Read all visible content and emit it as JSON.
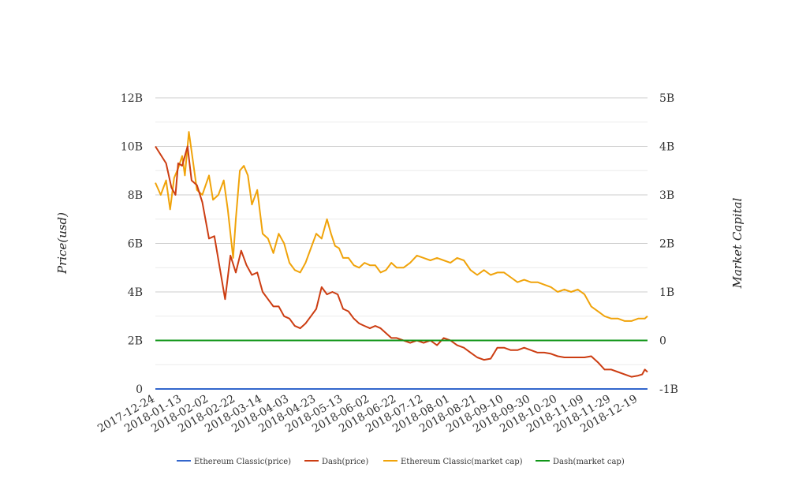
{
  "chart_data": {
    "type": "line",
    "title": "",
    "ylabel_left": "Price(usd)",
    "ylabel_right": "Market Capital",
    "y_left": {
      "min": 0,
      "max": 12000000000,
      "ticks": [
        0,
        2000000000,
        4000000000,
        6000000000,
        8000000000,
        10000000000,
        12000000000
      ],
      "tick_labels": [
        "0",
        "2B",
        "4B",
        "6B",
        "8B",
        "10B",
        "12B"
      ]
    },
    "y_right": {
      "min": -1000000000,
      "max": 5000000000,
      "ticks": [
        -1000000000,
        0,
        1000000000,
        2000000000,
        3000000000,
        4000000000,
        5000000000
      ],
      "tick_labels": [
        "-1B",
        "0",
        "1B",
        "2B",
        "3B",
        "4B",
        "5B"
      ]
    },
    "x_tick_labels": [
      "2017-12-24",
      "2018-01-13",
      "2018-02-02",
      "2018-02-22",
      "2018-03-14",
      "2018-04-03",
      "2018-04-23",
      "2018-05-13",
      "2018-06-02",
      "2018-06-22",
      "2018-07-12",
      "2018-08-01",
      "2018-08-21",
      "2018-09-10",
      "2018-09-30",
      "2018-10-20",
      "2018-11-09",
      "2018-11-29",
      "2018-12-19"
    ],
    "grid": true,
    "legend_position": "bottom",
    "series": [
      {
        "name": "Ethereum Classic(price)",
        "axis": "left",
        "color": "#3366cc",
        "x": [
          "2017-12-24",
          "2018-12-26"
        ],
        "values": [
          30,
          5
        ]
      },
      {
        "name": "Dash(price)",
        "axis": "left",
        "color": "#cc3d12",
        "x": [
          "2017-12-24",
          "2018-01-01",
          "2018-01-05",
          "2018-01-08",
          "2018-01-10",
          "2018-01-13",
          "2018-01-17",
          "2018-01-20",
          "2018-01-24",
          "2018-01-28",
          "2018-02-02",
          "2018-02-06",
          "2018-02-10",
          "2018-02-14",
          "2018-02-18",
          "2018-02-22",
          "2018-02-26",
          "2018-03-02",
          "2018-03-06",
          "2018-03-10",
          "2018-03-14",
          "2018-03-18",
          "2018-03-22",
          "2018-03-26",
          "2018-03-30",
          "2018-04-03",
          "2018-04-07",
          "2018-04-11",
          "2018-04-15",
          "2018-04-19",
          "2018-04-23",
          "2018-04-27",
          "2018-05-01",
          "2018-05-05",
          "2018-05-09",
          "2018-05-13",
          "2018-05-17",
          "2018-05-21",
          "2018-05-25",
          "2018-05-29",
          "2018-06-02",
          "2018-06-06",
          "2018-06-10",
          "2018-06-14",
          "2018-06-18",
          "2018-06-22",
          "2018-06-27",
          "2018-07-02",
          "2018-07-07",
          "2018-07-12",
          "2018-07-17",
          "2018-07-22",
          "2018-07-27",
          "2018-08-01",
          "2018-08-06",
          "2018-08-11",
          "2018-08-16",
          "2018-08-21",
          "2018-08-26",
          "2018-08-31",
          "2018-09-05",
          "2018-09-10",
          "2018-09-15",
          "2018-09-20",
          "2018-09-25",
          "2018-09-30",
          "2018-10-05",
          "2018-10-10",
          "2018-10-15",
          "2018-10-20",
          "2018-10-25",
          "2018-10-30",
          "2018-11-04",
          "2018-11-09",
          "2018-11-14",
          "2018-11-19",
          "2018-11-24",
          "2018-11-29",
          "2018-12-04",
          "2018-12-09",
          "2018-12-14",
          "2018-12-19",
          "2018-12-22",
          "2018-12-24",
          "2018-12-26"
        ],
        "values": [
          10000000000,
          9300000000,
          8300000000,
          8000000000,
          9300000000,
          9200000000,
          10000000000,
          8600000000,
          8400000000,
          7700000000,
          6200000000,
          6300000000,
          5000000000,
          3700000000,
          5500000000,
          4800000000,
          5700000000,
          5100000000,
          4700000000,
          4800000000,
          4000000000,
          3700000000,
          3400000000,
          3400000000,
          3000000000,
          2900000000,
          2600000000,
          2500000000,
          2700000000,
          3000000000,
          3300000000,
          4200000000,
          3900000000,
          4000000000,
          3900000000,
          3300000000,
          3200000000,
          2900000000,
          2700000000,
          2600000000,
          2500000000,
          2600000000,
          2500000000,
          2300000000,
          2100000000,
          2100000000,
          2000000000,
          1900000000,
          2000000000,
          1900000000,
          2000000000,
          1800000000,
          2100000000,
          2000000000,
          1800000000,
          1700000000,
          1500000000,
          1300000000,
          1200000000,
          1250000000,
          1700000000,
          1700000000,
          1600000000,
          1600000000,
          1700000000,
          1600000000,
          1500000000,
          1500000000,
          1450000000,
          1350000000,
          1300000000,
          1300000000,
          1300000000,
          1300000000,
          1350000000,
          1100000000,
          800000000,
          800000000,
          700000000,
          600000000,
          500000000,
          550000000,
          600000000,
          800000000,
          700000000
        ]
      },
      {
        "name": "Ethereum Classic(market cap)",
        "axis": "right",
        "color": "#f0a30a",
        "x": [
          "2017-12-24",
          "2017-12-28",
          "2018-01-01",
          "2018-01-04",
          "2018-01-07",
          "2018-01-10",
          "2018-01-13",
          "2018-01-15",
          "2018-01-18",
          "2018-01-21",
          "2018-01-24",
          "2018-01-28",
          "2018-02-02",
          "2018-02-05",
          "2018-02-09",
          "2018-02-13",
          "2018-02-16",
          "2018-02-20",
          "2018-02-22",
          "2018-02-25",
          "2018-02-28",
          "2018-03-03",
          "2018-03-06",
          "2018-03-10",
          "2018-03-14",
          "2018-03-18",
          "2018-03-22",
          "2018-03-26",
          "2018-03-30",
          "2018-04-03",
          "2018-04-07",
          "2018-04-11",
          "2018-04-15",
          "2018-04-19",
          "2018-04-23",
          "2018-04-27",
          "2018-05-01",
          "2018-05-04",
          "2018-05-07",
          "2018-05-10",
          "2018-05-13",
          "2018-05-17",
          "2018-05-21",
          "2018-05-25",
          "2018-05-29",
          "2018-06-02",
          "2018-06-06",
          "2018-06-10",
          "2018-06-14",
          "2018-06-18",
          "2018-06-22",
          "2018-06-27",
          "2018-07-02",
          "2018-07-07",
          "2018-07-12",
          "2018-07-17",
          "2018-07-22",
          "2018-07-27",
          "2018-08-01",
          "2018-08-06",
          "2018-08-11",
          "2018-08-16",
          "2018-08-21",
          "2018-08-26",
          "2018-08-31",
          "2018-09-05",
          "2018-09-10",
          "2018-09-15",
          "2018-09-20",
          "2018-09-25",
          "2018-09-30",
          "2018-10-05",
          "2018-10-10",
          "2018-10-15",
          "2018-10-20",
          "2018-10-25",
          "2018-10-30",
          "2018-11-04",
          "2018-11-09",
          "2018-11-14",
          "2018-11-19",
          "2018-11-24",
          "2018-11-29",
          "2018-12-04",
          "2018-12-09",
          "2018-12-14",
          "2018-12-19",
          "2018-12-24",
          "2018-12-26"
        ],
        "values": [
          3250000000,
          3000000000,
          3300000000,
          2700000000,
          3350000000,
          3550000000,
          3800000000,
          3400000000,
          4300000000,
          3700000000,
          3100000000,
          3000000000,
          3400000000,
          2900000000,
          3000000000,
          3300000000,
          2700000000,
          1700000000,
          2500000000,
          3500000000,
          3600000000,
          3400000000,
          2800000000,
          3100000000,
          2200000000,
          2100000000,
          1800000000,
          2200000000,
          2000000000,
          1600000000,
          1450000000,
          1400000000,
          1600000000,
          1900000000,
          2200000000,
          2100000000,
          2500000000,
          2200000000,
          1950000000,
          1900000000,
          1700000000,
          1700000000,
          1550000000,
          1500000000,
          1600000000,
          1550000000,
          1550000000,
          1400000000,
          1450000000,
          1600000000,
          1500000000,
          1500000000,
          1600000000,
          1750000000,
          1700000000,
          1650000000,
          1700000000,
          1650000000,
          1600000000,
          1700000000,
          1650000000,
          1450000000,
          1350000000,
          1450000000,
          1350000000,
          1400000000,
          1400000000,
          1300000000,
          1200000000,
          1250000000,
          1200000000,
          1200000000,
          1150000000,
          1100000000,
          1000000000,
          1050000000,
          1000000000,
          1050000000,
          950000000,
          700000000,
          600000000,
          500000000,
          450000000,
          450000000,
          400000000,
          400000000,
          450000000,
          450000000,
          500000000
        ]
      },
      {
        "name": "Dash(market cap)",
        "axis": "right",
        "color": "#109618",
        "x": [
          "2017-12-24",
          "2018-12-26"
        ],
        "values": [
          0,
          0
        ]
      }
    ]
  }
}
